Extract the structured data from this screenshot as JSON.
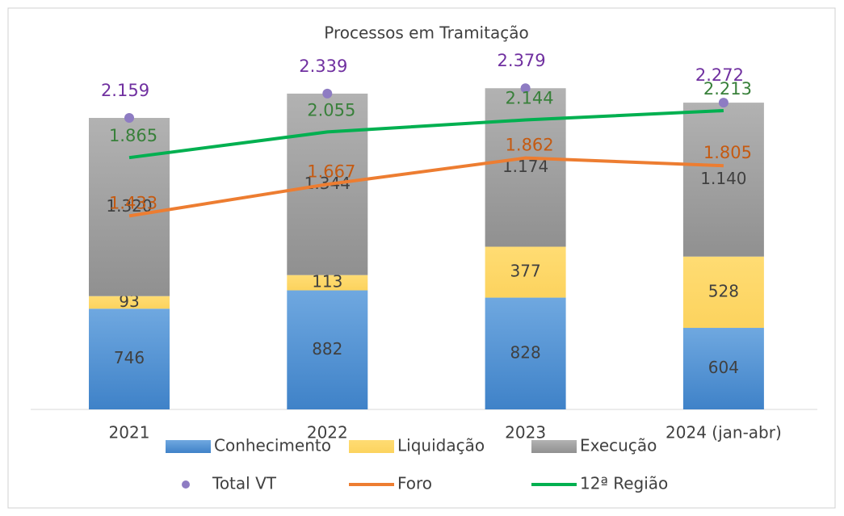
{
  "chart_data": {
    "type": "bar",
    "title": "Processos em Tramitação",
    "categories": [
      "2021",
      "2022",
      "2023",
      "2024 (jan-abr)"
    ],
    "series": [
      {
        "name": "Conhecimento",
        "type": "bar",
        "color": "#5b9bd5",
        "values": [
          746,
          882,
          828,
          604
        ]
      },
      {
        "name": "Liquidação",
        "type": "bar",
        "color": "#ffd966",
        "values": [
          93,
          113,
          377,
          528
        ]
      },
      {
        "name": "Execução",
        "type": "bar",
        "color": "#a5a5a5",
        "values": [
          1320,
          1344,
          1174,
          1140
        ],
        "value_labels": [
          "1.320",
          "1.344",
          "1.174",
          "1.140"
        ]
      },
      {
        "name": "Total VT",
        "type": "scatter",
        "color": "#8e7cc3",
        "label_color": "#7030a0",
        "values": [
          2159,
          2339,
          2379,
          2272
        ],
        "value_labels": [
          "2.159",
          "2.339",
          "2.379",
          "2.272"
        ]
      },
      {
        "name": "Foro",
        "type": "line",
        "color": "#ed7d31",
        "label_color": "#c55a11",
        "values": [
          1433,
          1667,
          1862,
          1805
        ],
        "value_labels": [
          "1.433",
          "1.667",
          "1.862",
          "1.805"
        ]
      },
      {
        "name": "12ª Região",
        "type": "line",
        "color": "#00b050",
        "label_color": "#38803a",
        "values": [
          1865,
          2055,
          2144,
          2213
        ],
        "value_labels": [
          "1.865",
          "2.055",
          "2.144",
          "2.213"
        ]
      }
    ]
  }
}
